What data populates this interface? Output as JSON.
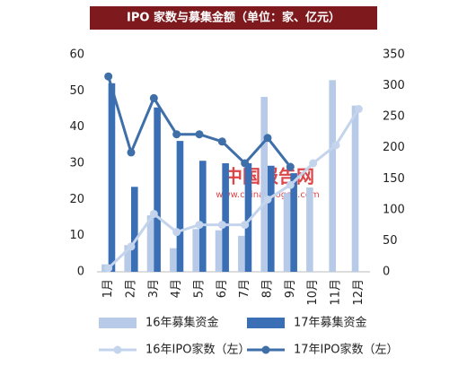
{
  "chart_data": {
    "type": "bar",
    "title": "IPO 家数与募集金额（单位：家、亿元）",
    "watermark": "中国报告网",
    "watermark_url": "www.chinabaogao.com",
    "categories": [
      "1月",
      "2月",
      "3月",
      "4月",
      "5月",
      "6月",
      "7月",
      "8月",
      "9月",
      "10月",
      "11月",
      "12月"
    ],
    "series": [
      {
        "name": "16年募集资金",
        "type": "bar",
        "axis": "y2",
        "color": "#b7cbe8",
        "values": [
          12,
          43,
          91,
          38,
          69,
          67,
          58,
          282,
          127,
          136,
          309,
          268
        ]
      },
      {
        "name": "17年募集资金",
        "type": "bar",
        "axis": "y2",
        "color": "#3a6fb5",
        "values": [
          304,
          137,
          265,
          211,
          179,
          175,
          175,
          171,
          159,
          null,
          null,
          null
        ]
      },
      {
        "name": "16年IPO家数（左）",
        "type": "line",
        "axis": "y",
        "color": "#c3d4ec",
        "values": [
          1,
          7,
          16,
          11,
          13,
          13,
          13,
          20,
          24,
          30,
          35,
          45
        ]
      },
      {
        "name": "17年IPO家数（左）",
        "type": "line",
        "axis": "y",
        "color": "#3f6fa8",
        "values": [
          54,
          33,
          48,
          38,
          38,
          36,
          30,
          37,
          29,
          null,
          null,
          null
        ]
      }
    ],
    "ylim": [
      0,
      60
    ],
    "yticks": [
      0,
      10,
      20,
      30,
      40,
      50,
      60
    ],
    "y2lim": [
      0,
      350
    ],
    "y2ticks": [
      0,
      50,
      100,
      150,
      200,
      250,
      300,
      350
    ]
  }
}
